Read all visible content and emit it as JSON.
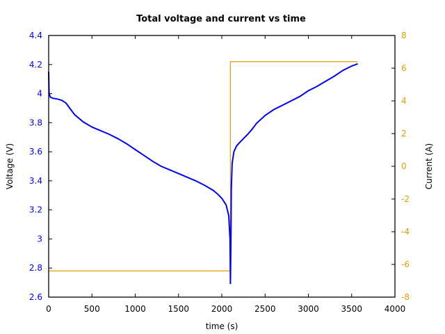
{
  "chart_data": {
    "type": "line",
    "title": "Total voltage and current vs time",
    "xlabel": "time (s)",
    "ylabel": "Voltage (V)",
    "y2label": "Current (A)",
    "xlim": [
      0,
      4000
    ],
    "ylim": [
      2.6,
      4.4
    ],
    "y2lim": [
      -8,
      8
    ],
    "x_ticks": [
      "0",
      "500",
      "1000",
      "1500",
      "2000",
      "2500",
      "3000",
      "3500",
      "4000"
    ],
    "y_ticks": [
      "2.6",
      "2.8",
      "3",
      "3.2",
      "3.4",
      "3.6",
      "3.8",
      "4",
      "4.2",
      "4.4"
    ],
    "y2_ticks": [
      "-8",
      "-6",
      "-4",
      "-2",
      "0",
      "2",
      "4",
      "6",
      "8"
    ],
    "grid": false,
    "legend": null,
    "colors": {
      "voltage": "#0000ff",
      "current": "#e69f00",
      "axes": "#000000"
    },
    "series": [
      {
        "name": "Voltage",
        "axis": "left",
        "x": [
          0,
          5,
          20,
          50,
          100,
          150,
          200,
          250,
          300,
          400,
          500,
          600,
          700,
          800,
          900,
          1000,
          1100,
          1200,
          1300,
          1400,
          1500,
          1600,
          1700,
          1800,
          1900,
          1950,
          2000,
          2050,
          2080,
          2095,
          2100,
          2105,
          2110,
          2120,
          2140,
          2170,
          2200,
          2250,
          2300,
          2350,
          2400,
          2500,
          2600,
          2700,
          2800,
          2900,
          3000,
          3100,
          3200,
          3300,
          3400,
          3500,
          3570
        ],
        "y": [
          4.15,
          4.0,
          3.975,
          3.968,
          3.963,
          3.955,
          3.935,
          3.895,
          3.855,
          3.805,
          3.77,
          3.745,
          3.72,
          3.69,
          3.655,
          3.615,
          3.575,
          3.535,
          3.5,
          3.475,
          3.45,
          3.425,
          3.4,
          3.37,
          3.335,
          3.31,
          3.28,
          3.235,
          3.16,
          3.0,
          2.69,
          3.0,
          3.35,
          3.52,
          3.6,
          3.64,
          3.66,
          3.69,
          3.72,
          3.755,
          3.795,
          3.85,
          3.89,
          3.92,
          3.95,
          3.98,
          4.02,
          4.05,
          4.085,
          4.12,
          4.16,
          4.19,
          4.205
        ]
      },
      {
        "name": "Current",
        "axis": "right",
        "x": [
          0,
          2100,
          2100,
          2110,
          3570
        ],
        "y": [
          -6.4,
          -6.4,
          6.4,
          6.4,
          6.4
        ]
      }
    ]
  }
}
